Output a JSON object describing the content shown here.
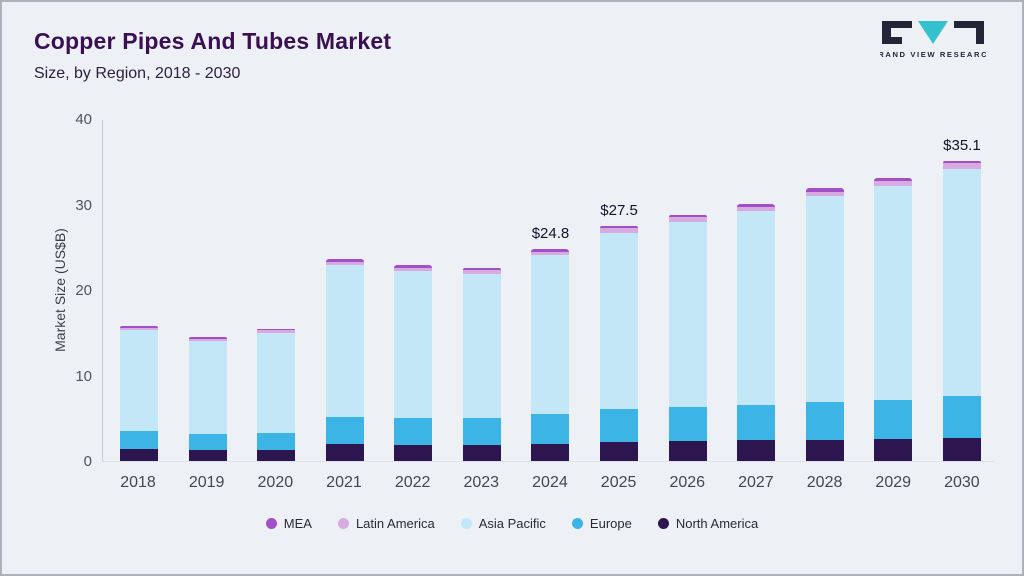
{
  "header": {
    "title": "Copper Pipes And Tubes Market",
    "subtitle": "Size, by Region, 2018 - 2030",
    "logo_text": "GRAND VIEW RESEARCH"
  },
  "chart_data": {
    "type": "bar",
    "stacked": true,
    "title": "Copper Pipes And Tubes Market Size, by Region, 2018 - 2030",
    "xlabel": "",
    "ylabel": "Market Size (US$B)",
    "ylim": [
      0,
      40
    ],
    "yticks": [
      0,
      10,
      20,
      30,
      40
    ],
    "grid": false,
    "legend_position": "bottom",
    "categories": [
      "2018",
      "2019",
      "2020",
      "2021",
      "2022",
      "2023",
      "2024",
      "2025",
      "2026",
      "2027",
      "2028",
      "2029",
      "2030"
    ],
    "series": [
      {
        "name": "North America",
        "color": "#2d1650",
        "values": [
          1.4,
          1.3,
          1.3,
          2.0,
          1.9,
          1.9,
          2.0,
          2.2,
          2.3,
          2.4,
          2.5,
          2.6,
          2.7
        ]
      },
      {
        "name": "Europe",
        "color": "#3cb4e5",
        "values": [
          2.1,
          1.9,
          2.0,
          3.2,
          3.1,
          3.1,
          3.5,
          3.9,
          4.0,
          4.1,
          4.4,
          4.5,
          4.9
        ]
      },
      {
        "name": "Asia Pacific",
        "color": "#c3e7f7",
        "values": [
          11.8,
          10.8,
          11.7,
          17.7,
          17.2,
          16.9,
          18.6,
          20.6,
          21.7,
          22.7,
          24.1,
          25.1,
          26.6
        ]
      },
      {
        "name": "Latin America",
        "color": "#d8abe0",
        "values": [
          0.3,
          0.3,
          0.3,
          0.4,
          0.4,
          0.4,
          0.4,
          0.5,
          0.5,
          0.5,
          0.5,
          0.5,
          0.6
        ]
      },
      {
        "name": "MEA",
        "color": "#a14fc9",
        "values": [
          0.2,
          0.2,
          0.2,
          0.3,
          0.3,
          0.3,
          0.3,
          0.3,
          0.3,
          0.4,
          0.4,
          0.4,
          0.3
        ]
      }
    ],
    "annotations": [
      {
        "category": "2024",
        "text": "$24.8"
      },
      {
        "category": "2025",
        "text": "$27.5"
      },
      {
        "category": "2030",
        "text": "$35.1"
      }
    ],
    "legend": [
      "MEA",
      "Latin America",
      "Asia Pacific",
      "Europe",
      "North America"
    ]
  }
}
